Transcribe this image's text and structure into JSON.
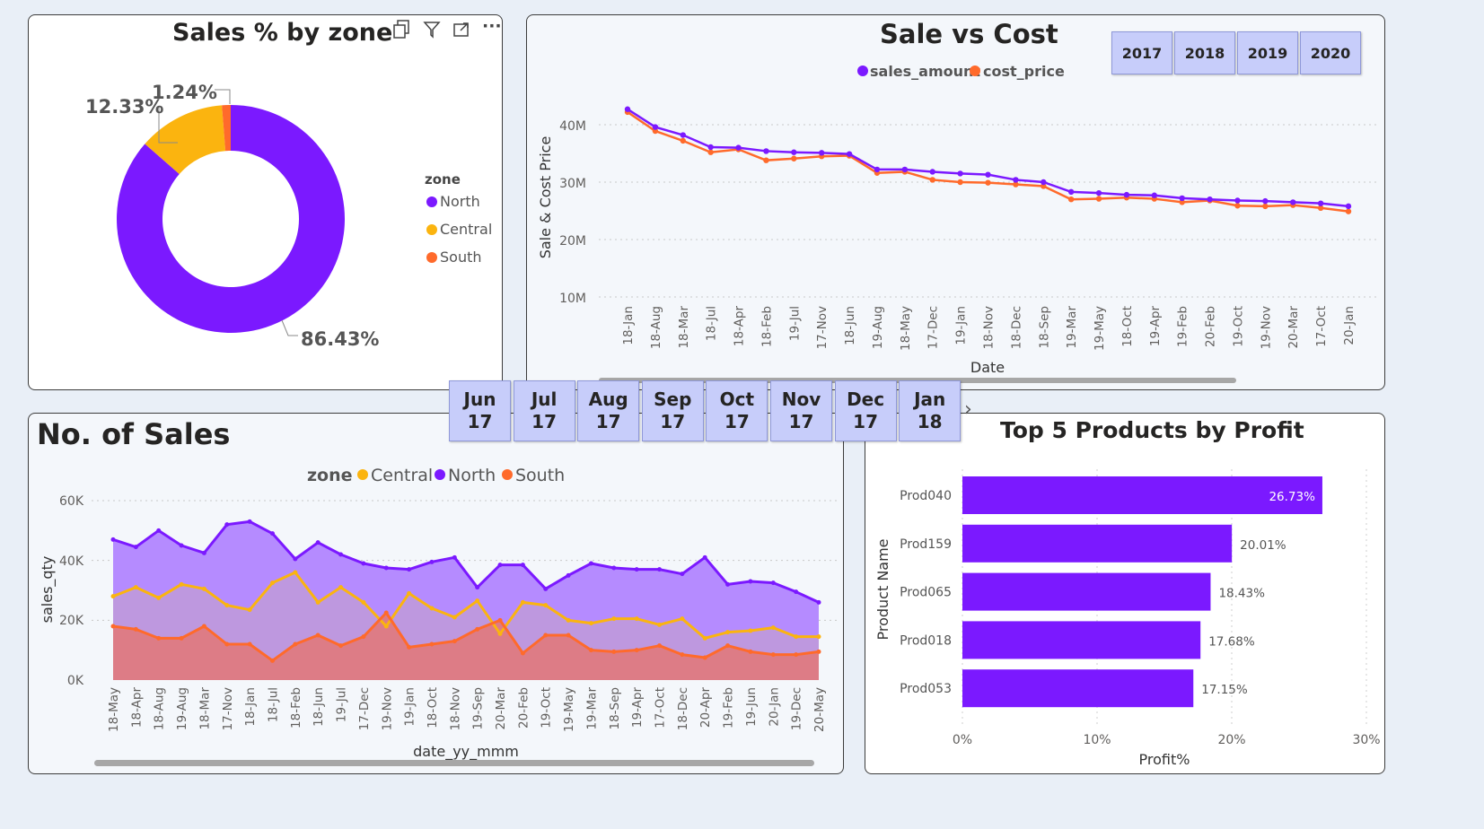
{
  "colors": {
    "north": "#7b19ff",
    "central": "#fbb40f",
    "south": "#ff6a2b",
    "sales": "#7b19ff",
    "cost": "#ff6a2b",
    "bar": "#7b19ff"
  },
  "donut": {
    "title": "Sales % by zone",
    "legend_title": "zone",
    "slices": [
      {
        "name": "North",
        "value": 86.43,
        "label": "86.43%"
      },
      {
        "name": "Central",
        "value": 12.33,
        "label": "12.33%"
      },
      {
        "name": "South",
        "value": 1.24,
        "label": "1.24%"
      }
    ],
    "icons": [
      "copy-icon",
      "filter-icon",
      "expand-icon",
      "more-icon"
    ]
  },
  "sale_cost": {
    "title": "Sale vs Cost",
    "legend": [
      "sales_amount",
      "cost_price"
    ],
    "ylabel": "Sale & Cost Price",
    "xlabel": "Date",
    "yticks": [
      "40M",
      "30M",
      "20M",
      "10M"
    ],
    "years": [
      "2017",
      "2018",
      "2019",
      "2020"
    ],
    "x": [
      "18-Jan",
      "18-Aug",
      "18-Mar",
      "18-Jul",
      "18-Apr",
      "18-Feb",
      "19-Jul",
      "17-Nov",
      "18-Jun",
      "19-Aug",
      "18-May",
      "17-Dec",
      "19-Jan",
      "18-Nov",
      "18-Dec",
      "18-Sep",
      "19-Mar",
      "19-May",
      "18-Oct",
      "19-Apr",
      "19-Feb",
      "20-Feb",
      "19-Oct",
      "19-Nov",
      "20-Mar",
      "17-Oct",
      "20-Jan"
    ],
    "sales": [
      42.7,
      39.6,
      38.2,
      36.1,
      36.0,
      35.4,
      35.2,
      35.1,
      34.9,
      32.2,
      32.2,
      31.8,
      31.5,
      31.3,
      30.4,
      30.0,
      28.3,
      28.1,
      27.8,
      27.7,
      27.2,
      27.0,
      26.8,
      26.7,
      26.5,
      26.3,
      25.8
    ],
    "cost": [
      42.2,
      38.9,
      37.2,
      35.2,
      35.7,
      33.8,
      34.1,
      34.5,
      34.6,
      31.6,
      31.8,
      30.4,
      30.0,
      29.9,
      29.6,
      29.3,
      27.0,
      27.1,
      27.3,
      27.1,
      26.5,
      26.8,
      25.9,
      25.8,
      26.0,
      25.5,
      24.9
    ],
    "ylim": [
      6,
      46
    ]
  },
  "month_slicer": [
    [
      "Jun",
      "17"
    ],
    [
      "Jul",
      "17"
    ],
    [
      "Aug",
      "17"
    ],
    [
      "Sep",
      "17"
    ],
    [
      "Oct",
      "17"
    ],
    [
      "Nov",
      "17"
    ],
    [
      "Dec",
      "17"
    ],
    [
      "Jan",
      "18"
    ]
  ],
  "no_sales": {
    "title": "No. of Sales",
    "legend_title": "zone",
    "legend": [
      "Central",
      "North",
      "South"
    ],
    "ylabel": "sales_qty",
    "xlabel": "date_yy_mmm",
    "yticks": [
      "60K",
      "40K",
      "20K",
      "0K"
    ],
    "x": [
      "18-May",
      "18-Apr",
      "18-Aug",
      "19-Aug",
      "18-Mar",
      "17-Nov",
      "18-Jan",
      "18-Jul",
      "18-Feb",
      "18-Jun",
      "19-Jul",
      "17-Dec",
      "19-Nov",
      "19-Jan",
      "18-Oct",
      "18-Nov",
      "19-Sep",
      "20-Mar",
      "20-Feb",
      "19-Oct",
      "19-May",
      "19-Mar",
      "18-Sep",
      "19-Apr",
      "17-Oct",
      "18-Dec",
      "20-Apr",
      "19-Feb",
      "19-Jun",
      "20-Jan",
      "19-Dec",
      "20-May"
    ],
    "north": [
      47,
      44.5,
      50,
      45,
      42.5,
      52,
      53,
      49,
      40.5,
      46,
      42,
      39,
      37.5,
      37,
      39.5,
      41,
      31,
      38.5,
      38.5,
      30.5,
      35,
      39,
      37.5,
      37,
      37,
      35.5,
      41,
      32,
      33,
      32.5,
      29.5,
      26
    ],
    "central": [
      28,
      31,
      27.5,
      32,
      30.5,
      25,
      23.5,
      32.5,
      36,
      26,
      31,
      26,
      18,
      29,
      24,
      21,
      26.5,
      15.5,
      26,
      25,
      20,
      19,
      20.5,
      20.5,
      18.5,
      20.5,
      14,
      16,
      16.5,
      17.5,
      14.5,
      14.5
    ],
    "south": [
      18,
      17,
      14,
      14,
      18,
      12,
      12,
      6.5,
      12,
      15,
      11.5,
      14.5,
      22.5,
      11,
      12,
      13,
      17,
      20,
      9,
      15,
      15,
      10,
      9.5,
      10,
      11.5,
      8.5,
      7.5,
      11.5,
      9.5,
      8.5,
      8.5,
      9.5
    ],
    "ylim": [
      0,
      60
    ]
  },
  "top5": {
    "title": "Top 5 Products by Profit",
    "ylabel": "Product Name",
    "xlabel": "Profit%",
    "xticks": [
      "0%",
      "10%",
      "20%",
      "30%"
    ],
    "products": [
      "Prod040",
      "Prod159",
      "Prod065",
      "Prod018",
      "Prod053"
    ],
    "values": [
      26.73,
      20.01,
      18.43,
      17.68,
      17.15
    ],
    "labels": [
      "26.73%",
      "20.01%",
      "18.43%",
      "17.68%",
      "17.15%"
    ],
    "xlim": [
      0,
      30
    ]
  }
}
